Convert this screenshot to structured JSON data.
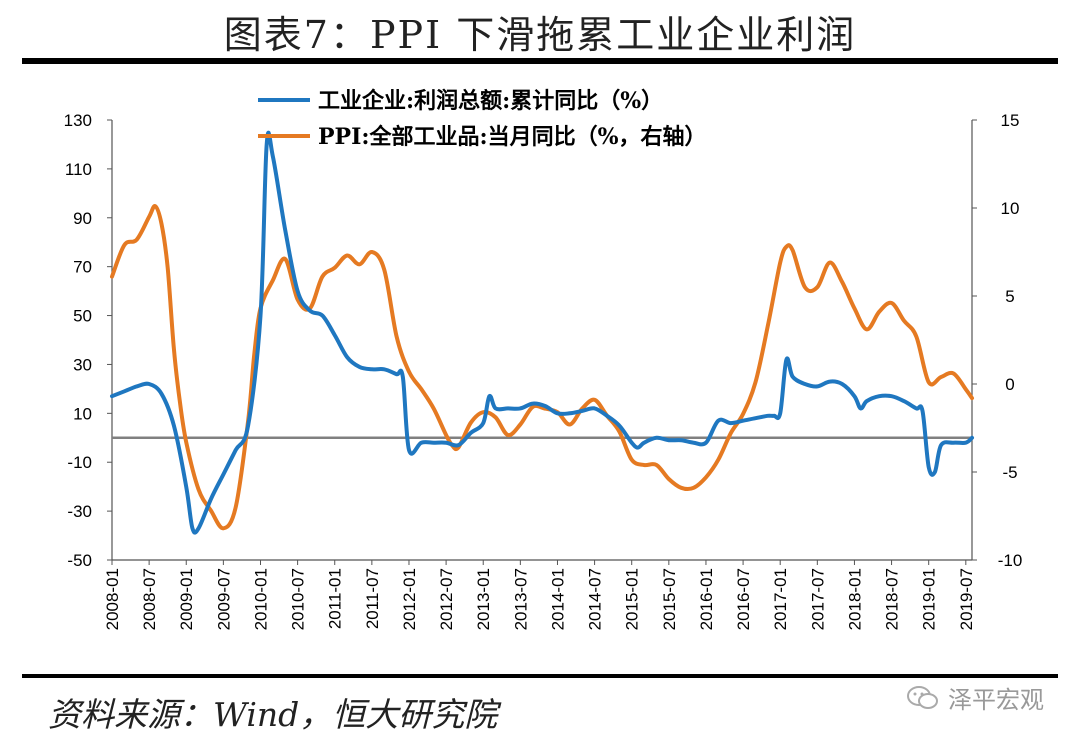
{
  "title": "图表7：PPI 下滑拖累工业企业利润",
  "source": "资料来源：Wind，恒大研究院",
  "watermark": "泽平宏观",
  "colors": {
    "profit": "#1f77c0",
    "ppi": "#e57a22",
    "zero_line": "#808080"
  },
  "chart_data": {
    "type": "line",
    "legend_position": "top-center",
    "grid": false,
    "x_ticks": [
      "2008-01",
      "2008-07",
      "2009-01",
      "2009-07",
      "2010-01",
      "2010-07",
      "2011-01",
      "2011-07",
      "2012-01",
      "2012-07",
      "2013-01",
      "2013-07",
      "2014-01",
      "2014-07",
      "2015-01",
      "2015-07",
      "2016-01",
      "2016-07",
      "2017-01",
      "2017-07",
      "2018-01",
      "2018-07",
      "2019-01",
      "2019-07"
    ],
    "y_left": {
      "min": -50,
      "max": 130,
      "ticks": [
        130,
        110,
        90,
        70,
        50,
        30,
        10,
        -10,
        -30,
        -50
      ]
    },
    "y_right": {
      "min": -10,
      "max": 15,
      "ticks": [
        15,
        10,
        5,
        0,
        -5,
        -10
      ]
    },
    "reference_line": {
      "axis": "left",
      "value": 0
    },
    "series": [
      {
        "name": "工业企业:利润总额:累计同比（%）",
        "axis": "left",
        "color_key": "profit",
        "points": [
          [
            "2008-01",
            17
          ],
          [
            "2008-03",
            19
          ],
          [
            "2008-05",
            21
          ],
          [
            "2008-07",
            22
          ],
          [
            "2008-09",
            18
          ],
          [
            "2008-11",
            5
          ],
          [
            "2009-01",
            -20
          ],
          [
            "2009-02",
            -37
          ],
          [
            "2009-03",
            -37
          ],
          [
            "2009-05",
            -25
          ],
          [
            "2009-07",
            -15
          ],
          [
            "2009-09",
            -5
          ],
          [
            "2009-11",
            5
          ],
          [
            "2010-01",
            50
          ],
          [
            "2010-02",
            120
          ],
          [
            "2010-03",
            115
          ],
          [
            "2010-05",
            85
          ],
          [
            "2010-07",
            60
          ],
          [
            "2010-09",
            52
          ],
          [
            "2010-11",
            50
          ],
          [
            "2011-01",
            42
          ],
          [
            "2011-03",
            33
          ],
          [
            "2011-05",
            29
          ],
          [
            "2011-07",
            28
          ],
          [
            "2011-09",
            28
          ],
          [
            "2011-11",
            26
          ],
          [
            "2011-12",
            25
          ],
          [
            "2012-01",
            -5
          ],
          [
            "2012-03",
            -2
          ],
          [
            "2012-05",
            -2
          ],
          [
            "2012-07",
            -2
          ],
          [
            "2012-09",
            -3
          ],
          [
            "2012-11",
            2
          ],
          [
            "2013-01",
            6
          ],
          [
            "2013-02",
            17
          ],
          [
            "2013-03",
            12
          ],
          [
            "2013-05",
            12
          ],
          [
            "2013-07",
            12
          ],
          [
            "2013-09",
            14
          ],
          [
            "2013-11",
            13
          ],
          [
            "2014-01",
            10
          ],
          [
            "2014-03",
            10
          ],
          [
            "2014-05",
            11
          ],
          [
            "2014-07",
            12
          ],
          [
            "2014-09",
            9
          ],
          [
            "2014-11",
            5
          ],
          [
            "2015-01",
            -2
          ],
          [
            "2015-02",
            -4
          ],
          [
            "2015-03",
            -2
          ],
          [
            "2015-05",
            0
          ],
          [
            "2015-07",
            -1
          ],
          [
            "2015-09",
            -1
          ],
          [
            "2015-11",
            -2
          ],
          [
            "2016-01",
            -2
          ],
          [
            "2016-03",
            7
          ],
          [
            "2016-05",
            6
          ],
          [
            "2016-07",
            7
          ],
          [
            "2016-09",
            8
          ],
          [
            "2016-11",
            9
          ],
          [
            "2016-12",
            9
          ],
          [
            "2017-01",
            10
          ],
          [
            "2017-02",
            32
          ],
          [
            "2017-03",
            25
          ],
          [
            "2017-05",
            22
          ],
          [
            "2017-07",
            21
          ],
          [
            "2017-09",
            23
          ],
          [
            "2017-11",
            22
          ],
          [
            "2018-01",
            17
          ],
          [
            "2018-02",
            12
          ],
          [
            "2018-03",
            15
          ],
          [
            "2018-05",
            17
          ],
          [
            "2018-07",
            17
          ],
          [
            "2018-09",
            15
          ],
          [
            "2018-11",
            12
          ],
          [
            "2018-12",
            11
          ],
          [
            "2019-01",
            -12
          ],
          [
            "2019-02",
            -14
          ],
          [
            "2019-03",
            -3
          ],
          [
            "2019-05",
            -2
          ],
          [
            "2019-07",
            -2
          ],
          [
            "2019-08",
            0
          ]
        ]
      },
      {
        "name": "PPI:全部工业品:当月同比（%，右轴）",
        "axis": "right",
        "color_key": "ppi",
        "points": [
          [
            "2008-01",
            6.1
          ],
          [
            "2008-03",
            7.9
          ],
          [
            "2008-05",
            8.2
          ],
          [
            "2008-07",
            9.5
          ],
          [
            "2008-08",
            10.1
          ],
          [
            "2008-09",
            9.1
          ],
          [
            "2008-10",
            6.6
          ],
          [
            "2008-11",
            2.0
          ],
          [
            "2008-12",
            -1.1
          ],
          [
            "2009-01",
            -3.3
          ],
          [
            "2009-03",
            -6.0
          ],
          [
            "2009-05",
            -7.2
          ],
          [
            "2009-07",
            -8.2
          ],
          [
            "2009-09",
            -7.0
          ],
          [
            "2009-11",
            -2.1
          ],
          [
            "2009-12",
            1.7
          ],
          [
            "2010-01",
            4.3
          ],
          [
            "2010-03",
            5.9
          ],
          [
            "2010-05",
            7.1
          ],
          [
            "2010-07",
            4.8
          ],
          [
            "2010-09",
            4.3
          ],
          [
            "2010-11",
            6.1
          ],
          [
            "2011-01",
            6.6
          ],
          [
            "2011-03",
            7.3
          ],
          [
            "2011-05",
            6.8
          ],
          [
            "2011-07",
            7.5
          ],
          [
            "2011-09",
            6.5
          ],
          [
            "2011-11",
            2.7
          ],
          [
            "2012-01",
            0.7
          ],
          [
            "2012-03",
            -0.3
          ],
          [
            "2012-05",
            -1.4
          ],
          [
            "2012-07",
            -2.9
          ],
          [
            "2012-08",
            -3.5
          ],
          [
            "2012-09",
            -3.6
          ],
          [
            "2012-11",
            -2.2
          ],
          [
            "2013-01",
            -1.6
          ],
          [
            "2013-03",
            -1.9
          ],
          [
            "2013-05",
            -2.9
          ],
          [
            "2013-07",
            -2.3
          ],
          [
            "2013-09",
            -1.3
          ],
          [
            "2013-11",
            -1.4
          ],
          [
            "2014-01",
            -1.6
          ],
          [
            "2014-03",
            -2.3
          ],
          [
            "2014-05",
            -1.4
          ],
          [
            "2014-07",
            -0.9
          ],
          [
            "2014-09",
            -1.8
          ],
          [
            "2014-11",
            -2.7
          ],
          [
            "2015-01",
            -4.3
          ],
          [
            "2015-03",
            -4.6
          ],
          [
            "2015-05",
            -4.6
          ],
          [
            "2015-07",
            -5.4
          ],
          [
            "2015-09",
            -5.9
          ],
          [
            "2015-11",
            -5.9
          ],
          [
            "2016-01",
            -5.3
          ],
          [
            "2016-03",
            -4.3
          ],
          [
            "2016-05",
            -2.8
          ],
          [
            "2016-07",
            -1.7
          ],
          [
            "2016-09",
            0.1
          ],
          [
            "2016-11",
            3.3
          ],
          [
            "2017-01",
            6.9
          ],
          [
            "2017-02",
            7.8
          ],
          [
            "2017-03",
            7.6
          ],
          [
            "2017-05",
            5.5
          ],
          [
            "2017-07",
            5.5
          ],
          [
            "2017-09",
            6.9
          ],
          [
            "2017-11",
            5.8
          ],
          [
            "2018-01",
            4.3
          ],
          [
            "2018-03",
            3.1
          ],
          [
            "2018-05",
            4.1
          ],
          [
            "2018-07",
            4.6
          ],
          [
            "2018-09",
            3.6
          ],
          [
            "2018-11",
            2.7
          ],
          [
            "2019-01",
            0.1
          ],
          [
            "2019-03",
            0.4
          ],
          [
            "2019-05",
            0.6
          ],
          [
            "2019-07",
            -0.3
          ],
          [
            "2019-08",
            -0.8
          ]
        ]
      }
    ]
  }
}
